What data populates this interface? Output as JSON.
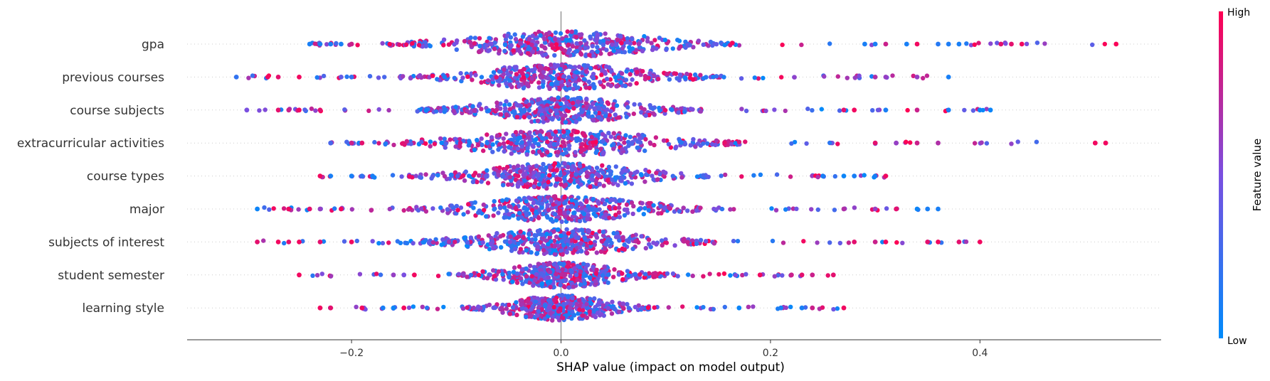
{
  "chart_data": {
    "type": "scatter",
    "subtype": "shap-beeswarm-summary",
    "xlabel": "SHAP value (impact on model output)",
    "x_ticks": [
      -0.2,
      0.0,
      0.2,
      0.4
    ],
    "x_tick_labels": [
      "−0.2",
      "0.0",
      "0.2",
      "0.4"
    ],
    "xlim": [
      -0.357,
      0.573
    ],
    "zero_line": true,
    "grid": "dotted horizontal guide per feature",
    "colorbar": {
      "title": "Feature value",
      "high_label": "High",
      "low_label": "Low",
      "high_color": "#ff0052",
      "low_color": "#008bfb",
      "placement": "right"
    },
    "features": [
      {
        "name": "gpa",
        "min": -0.24,
        "max": 0.53,
        "spread": 0.078,
        "outliers": [
          [
            0.53,
            0.98
          ],
          [
            0.44,
            0.95
          ],
          [
            0.43,
            0.9
          ],
          [
            0.42,
            0.9
          ],
          [
            0.38,
            0.1
          ],
          [
            0.37,
            0.12
          ],
          [
            0.36,
            0.15
          ],
          [
            0.34,
            0.95
          ],
          [
            0.33,
            0.1
          ],
          [
            0.31,
            0.8
          ],
          [
            0.3,
            0.1
          ],
          [
            0.29,
            0.1
          ],
          [
            -0.24,
            0.1
          ],
          [
            -0.23,
            0.1
          ],
          [
            -0.22,
            0.1
          ],
          [
            -0.21,
            0.1
          ],
          [
            -0.2,
            0.8
          ]
        ],
        "bias": -0.2
      },
      {
        "name": "previous courses",
        "min": -0.31,
        "max": 0.37,
        "spread": 0.07,
        "outliers": [
          [
            0.37,
            0.1
          ],
          [
            0.34,
            0.6
          ],
          [
            0.31,
            0.6
          ],
          [
            0.3,
            0.7
          ],
          [
            -0.31,
            0.2
          ],
          [
            -0.28,
            0.95
          ],
          [
            -0.27,
            0.9
          ],
          [
            -0.25,
            0.95
          ],
          [
            -0.21,
            0.4
          ],
          [
            -0.2,
            0.2
          ]
        ],
        "bias": 0.1
      },
      {
        "name": "course subjects",
        "min": -0.3,
        "max": 0.41,
        "spread": 0.062,
        "outliers": [
          [
            0.41,
            0.05
          ],
          [
            0.4,
            0.05
          ],
          [
            0.37,
            0.1
          ],
          [
            0.34,
            0.8
          ],
          [
            0.31,
            0.1
          ],
          [
            0.28,
            0.95
          ],
          [
            0.27,
            0.9
          ],
          [
            -0.3,
            0.5
          ],
          [
            -0.27,
            0.9
          ],
          [
            -0.26,
            0.8
          ],
          [
            -0.25,
            0.95
          ],
          [
            -0.23,
            0.9
          ]
        ],
        "bias": 0.1
      },
      {
        "name": "extracurricular activities",
        "min": -0.22,
        "max": 0.52,
        "spread": 0.08,
        "outliers": [
          [
            0.52,
            0.95
          ],
          [
            0.51,
            0.95
          ],
          [
            0.36,
            0.7
          ],
          [
            0.34,
            0.8
          ],
          [
            0.32,
            0.6
          ],
          [
            0.3,
            0.9
          ],
          [
            -0.22,
            0.3
          ],
          [
            -0.2,
            0.8
          ],
          [
            -0.19,
            0.9
          ]
        ],
        "bias": 0.2
      },
      {
        "name": "course types",
        "min": -0.23,
        "max": 0.31,
        "spread": 0.066,
        "outliers": [
          [
            0.31,
            0.95
          ],
          [
            0.3,
            0.1
          ],
          [
            0.28,
            0.1
          ],
          [
            0.27,
            0.05
          ],
          [
            0.25,
            0.1
          ],
          [
            -0.23,
            0.95
          ],
          [
            -0.22,
            0.1
          ],
          [
            -0.2,
            0.1
          ],
          [
            -0.19,
            0.2
          ],
          [
            -0.18,
            0.1
          ]
        ],
        "bias": -0.25
      },
      {
        "name": "major",
        "min": -0.29,
        "max": 0.36,
        "spread": 0.07,
        "outliers": [
          [
            0.36,
            0.1
          ],
          [
            0.35,
            0.1
          ],
          [
            0.34,
            0.05
          ],
          [
            0.32,
            0.9
          ],
          [
            0.3,
            0.6
          ],
          [
            0.27,
            0.7
          ],
          [
            -0.29,
            0.05
          ],
          [
            -0.26,
            0.95
          ],
          [
            -0.24,
            0.9
          ],
          [
            -0.23,
            0.6
          ],
          [
            -0.21,
            0.95
          ]
        ],
        "bias": 0.0
      },
      {
        "name": "subjects of interest",
        "min": -0.29,
        "max": 0.4,
        "spread": 0.068,
        "outliers": [
          [
            0.4,
            0.95
          ],
          [
            0.38,
            0.9
          ],
          [
            0.36,
            0.95
          ],
          [
            0.35,
            0.9
          ],
          [
            0.31,
            0.95
          ],
          [
            0.3,
            0.8
          ],
          [
            0.28,
            0.9
          ],
          [
            -0.29,
            0.9
          ],
          [
            -0.27,
            0.95
          ],
          [
            -0.26,
            0.9
          ],
          [
            -0.25,
            0.95
          ],
          [
            -0.23,
            0.9
          ],
          [
            -0.2,
            0.95
          ]
        ],
        "bias": 0.5
      },
      {
        "name": "student semester",
        "min": -0.25,
        "max": 0.26,
        "spread": 0.045,
        "outliers": [
          [
            0.26,
            0.9
          ],
          [
            0.24,
            0.8
          ],
          [
            0.23,
            0.9
          ],
          [
            0.22,
            0.8
          ],
          [
            0.19,
            0.95
          ],
          [
            -0.25,
            0.95
          ],
          [
            -0.16,
            0.6
          ],
          [
            -0.15,
            0.5
          ],
          [
            -0.14,
            0.95
          ]
        ],
        "bias": 0.3
      },
      {
        "name": "learning style",
        "min": -0.23,
        "max": 0.27,
        "spread": 0.04,
        "outliers": [
          [
            0.27,
            0.95
          ],
          [
            0.24,
            0.8
          ],
          [
            0.23,
            0.1
          ],
          [
            0.21,
            0.1
          ],
          [
            0.17,
            0.05
          ],
          [
            -0.23,
            0.95
          ],
          [
            -0.22,
            0.9
          ],
          [
            -0.19,
            0.95
          ],
          [
            -0.17,
            0.1
          ],
          [
            -0.16,
            0.05
          ],
          [
            -0.15,
            0.95
          ]
        ],
        "bias": -0.1
      }
    ]
  }
}
